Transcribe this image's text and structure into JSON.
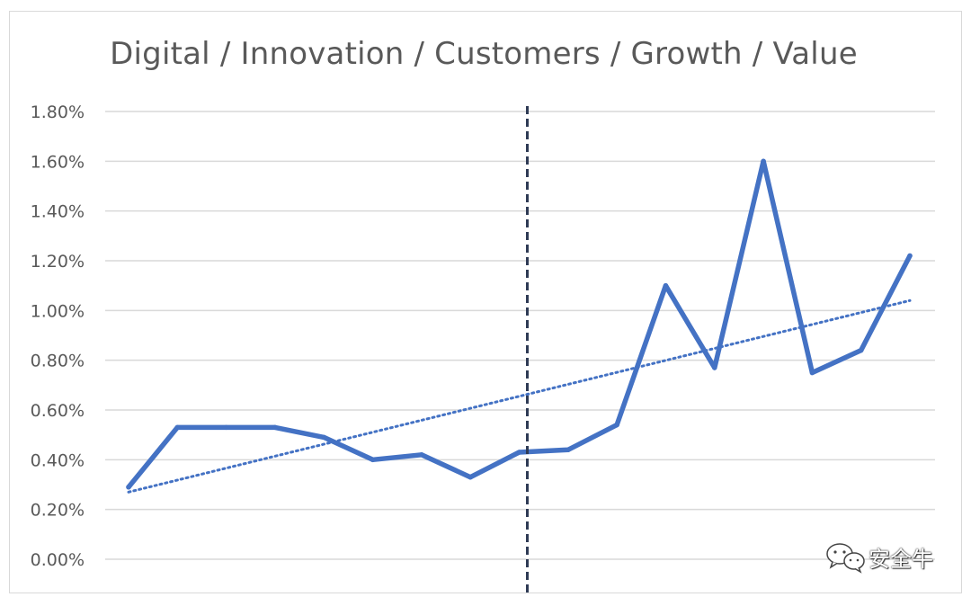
{
  "chart_data": {
    "type": "line",
    "title": "Digital / Innovation / Customers / Growth / Value",
    "xlabel": "",
    "ylabel": "",
    "ylim": [
      0,
      0.018
    ],
    "y_tick_values": [
      0,
      0.002,
      0.004,
      0.006,
      0.008,
      0.01,
      0.012,
      0.014,
      0.016,
      0.018
    ],
    "y_tick_labels": [
      "0.00%",
      "0.20%",
      "0.40%",
      "0.60%",
      "0.80%",
      "1.00%",
      "1.20%",
      "1.40%",
      "1.60%",
      "1.80%"
    ],
    "grid": true,
    "legend": "none",
    "series": [
      {
        "values": [
          0.0029,
          0.0053,
          0.0053,
          0.0053,
          0.0049,
          0.004,
          0.0042,
          0.0033,
          0.0043,
          0.0044,
          0.0054,
          0.011,
          0.0077,
          0.016,
          0.0075,
          0.0084,
          0.0122
        ],
        "color": "#4472c4"
      }
    ],
    "trendline": {
      "type": "linear",
      "start": 0.0027,
      "end": 0.0104,
      "color": "#4472c4",
      "style": "dotted"
    },
    "vertical_marker": {
      "x_index": 8,
      "color": "#2f3b55",
      "style": "dashed"
    }
  },
  "watermark": {
    "text": "安全牛",
    "icon": "wechat-icon"
  }
}
